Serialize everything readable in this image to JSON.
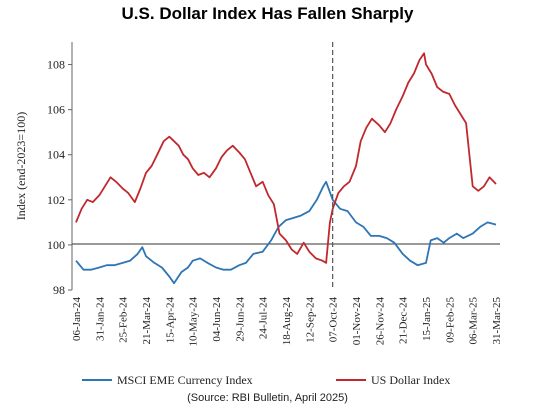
{
  "chart_data": {
    "type": "line",
    "title": "U.S. Dollar Index Has Fallen Sharply",
    "ylabel": "Index (end-2023=100)",
    "xlabel": "",
    "ylim": [
      98,
      109
    ],
    "yticks": [
      98,
      100,
      102,
      104,
      106,
      108
    ],
    "x_tick_labels": [
      "06-Jan-24",
      "31-Jan-24",
      "25-Feb-24",
      "21-Mar-24",
      "15-Apr-24",
      "10-May-24",
      "04-Jun-24",
      "29-Jun-24",
      "24-Jul-24",
      "18-Aug-24",
      "12-Sep-24",
      "07-Oct-24",
      "01-Nov-24",
      "26-Nov-24",
      "21-Dec-24",
      "15-Jan-25",
      "09-Feb-25",
      "06-Mar-25",
      "31-Mar-25"
    ],
    "baseline": 100,
    "vertical_marker": "07-Oct-24",
    "legend_position": "bottom",
    "series": [
      {
        "name": "MSCI EME Currency Index",
        "color": "#2e75b6",
        "points": [
          [
            "06-Jan-24",
            99.3
          ],
          [
            "14-Jan-24",
            98.9
          ],
          [
            "22-Jan-24",
            98.9
          ],
          [
            "31-Jan-24",
            99.0
          ],
          [
            "08-Feb-24",
            99.1
          ],
          [
            "16-Feb-24",
            99.1
          ],
          [
            "25-Feb-24",
            99.2
          ],
          [
            "04-Mar-24",
            99.3
          ],
          [
            "12-Mar-24",
            99.6
          ],
          [
            "17-Mar-24",
            99.9
          ],
          [
            "21-Mar-24",
            99.5
          ],
          [
            "30-Mar-24",
            99.2
          ],
          [
            "07-Apr-24",
            99.0
          ],
          [
            "15-Apr-24",
            98.6
          ],
          [
            "20-Apr-24",
            98.3
          ],
          [
            "28-Apr-24",
            98.8
          ],
          [
            "05-May-24",
            99.0
          ],
          [
            "10-May-24",
            99.3
          ],
          [
            "18-May-24",
            99.4
          ],
          [
            "26-May-24",
            99.2
          ],
          [
            "04-Jun-24",
            99.0
          ],
          [
            "12-Jun-24",
            98.9
          ],
          [
            "20-Jun-24",
            98.9
          ],
          [
            "29-Jun-24",
            99.1
          ],
          [
            "06-Jul-24",
            99.2
          ],
          [
            "14-Jul-24",
            99.6
          ],
          [
            "24-Jul-24",
            99.7
          ],
          [
            "02-Aug-24",
            100.2
          ],
          [
            "10-Aug-24",
            100.8
          ],
          [
            "18-Aug-24",
            101.1
          ],
          [
            "26-Aug-24",
            101.2
          ],
          [
            "03-Sep-24",
            101.3
          ],
          [
            "12-Sep-24",
            101.5
          ],
          [
            "20-Sep-24",
            102.0
          ],
          [
            "27-Sep-24",
            102.6
          ],
          [
            "30-Sep-24",
            102.8
          ],
          [
            "07-Oct-24",
            102.0
          ],
          [
            "15-Oct-24",
            101.6
          ],
          [
            "23-Oct-24",
            101.5
          ],
          [
            "01-Nov-24",
            101.0
          ],
          [
            "09-Nov-24",
            100.8
          ],
          [
            "17-Nov-24",
            100.4
          ],
          [
            "26-Nov-24",
            100.4
          ],
          [
            "04-Dec-24",
            100.3
          ],
          [
            "12-Dec-24",
            100.1
          ],
          [
            "21-Dec-24",
            99.6
          ],
          [
            "29-Dec-24",
            99.3
          ],
          [
            "06-Jan-25",
            99.1
          ],
          [
            "15-Jan-25",
            99.2
          ],
          [
            "20-Jan-25",
            100.2
          ],
          [
            "27-Jan-25",
            100.3
          ],
          [
            "03-Feb-25",
            100.1
          ],
          [
            "09-Feb-25",
            100.3
          ],
          [
            "17-Feb-25",
            100.5
          ],
          [
            "24-Feb-25",
            100.3
          ],
          [
            "06-Mar-25",
            100.5
          ],
          [
            "14-Mar-25",
            100.8
          ],
          [
            "22-Mar-25",
            101.0
          ],
          [
            "31-Mar-25",
            100.9
          ]
        ]
      },
      {
        "name": "US Dollar Index",
        "color": "#c0282d",
        "points": [
          [
            "06-Jan-24",
            101.0
          ],
          [
            "12-Jan-24",
            101.6
          ],
          [
            "18-Jan-24",
            102.0
          ],
          [
            "24-Jan-24",
            101.9
          ],
          [
            "31-Jan-24",
            102.2
          ],
          [
            "06-Feb-24",
            102.6
          ],
          [
            "12-Feb-24",
            103.0
          ],
          [
            "18-Feb-24",
            102.8
          ],
          [
            "25-Feb-24",
            102.5
          ],
          [
            "02-Mar-24",
            102.3
          ],
          [
            "09-Mar-24",
            101.9
          ],
          [
            "15-Mar-24",
            102.5
          ],
          [
            "21-Mar-24",
            103.2
          ],
          [
            "27-Mar-24",
            103.5
          ],
          [
            "02-Apr-24",
            104.0
          ],
          [
            "09-Apr-24",
            104.6
          ],
          [
            "15-Apr-24",
            104.8
          ],
          [
            "20-Apr-24",
            104.6
          ],
          [
            "25-Apr-24",
            104.4
          ],
          [
            "30-Apr-24",
            104.0
          ],
          [
            "05-May-24",
            103.8
          ],
          [
            "10-May-24",
            103.4
          ],
          [
            "16-May-24",
            103.1
          ],
          [
            "22-May-24",
            103.2
          ],
          [
            "28-May-24",
            103.0
          ],
          [
            "04-Jun-24",
            103.4
          ],
          [
            "10-Jun-24",
            103.9
          ],
          [
            "16-Jun-24",
            104.2
          ],
          [
            "22-Jun-24",
            104.4
          ],
          [
            "29-Jun-24",
            104.1
          ],
          [
            "05-Jul-24",
            103.8
          ],
          [
            "11-Jul-24",
            103.2
          ],
          [
            "17-Jul-24",
            102.6
          ],
          [
            "24-Jul-24",
            102.8
          ],
          [
            "30-Jul-24",
            102.2
          ],
          [
            "05-Aug-24",
            101.8
          ],
          [
            "11-Aug-24",
            100.5
          ],
          [
            "18-Aug-24",
            100.2
          ],
          [
            "24-Aug-24",
            99.8
          ],
          [
            "30-Aug-24",
            99.6
          ],
          [
            "06-Sep-24",
            100.1
          ],
          [
            "12-Sep-24",
            99.7
          ],
          [
            "19-Sep-24",
            99.4
          ],
          [
            "26-Sep-24",
            99.3
          ],
          [
            "30-Sep-24",
            99.2
          ],
          [
            "04-Oct-24",
            101.0
          ],
          [
            "07-Oct-24",
            101.6
          ],
          [
            "13-Oct-24",
            102.3
          ],
          [
            "19-Oct-24",
            102.6
          ],
          [
            "25-Oct-24",
            102.8
          ],
          [
            "01-Nov-24",
            103.5
          ],
          [
            "06-Nov-24",
            104.6
          ],
          [
            "12-Nov-24",
            105.2
          ],
          [
            "18-Nov-24",
            105.6
          ],
          [
            "26-Nov-24",
            105.3
          ],
          [
            "02-Dec-24",
            105.0
          ],
          [
            "08-Dec-24",
            105.4
          ],
          [
            "14-Dec-24",
            106.0
          ],
          [
            "21-Dec-24",
            106.6
          ],
          [
            "27-Dec-24",
            107.2
          ],
          [
            "02-Jan-25",
            107.6
          ],
          [
            "08-Jan-25",
            108.2
          ],
          [
            "13-Jan-25",
            108.5
          ],
          [
            "15-Jan-25",
            108.0
          ],
          [
            "21-Jan-25",
            107.6
          ],
          [
            "27-Jan-25",
            107.0
          ],
          [
            "02-Feb-25",
            106.8
          ],
          [
            "09-Feb-25",
            106.7
          ],
          [
            "15-Feb-25",
            106.2
          ],
          [
            "21-Feb-25",
            105.8
          ],
          [
            "27-Feb-25",
            105.4
          ],
          [
            "02-Mar-25",
            104.2
          ],
          [
            "06-Mar-25",
            102.6
          ],
          [
            "12-Mar-25",
            102.4
          ],
          [
            "18-Mar-25",
            102.6
          ],
          [
            "24-Mar-25",
            103.0
          ],
          [
            "31-Mar-25",
            102.7
          ]
        ]
      }
    ],
    "source": "(Source:  RBI Bulletin, April 2025)"
  }
}
